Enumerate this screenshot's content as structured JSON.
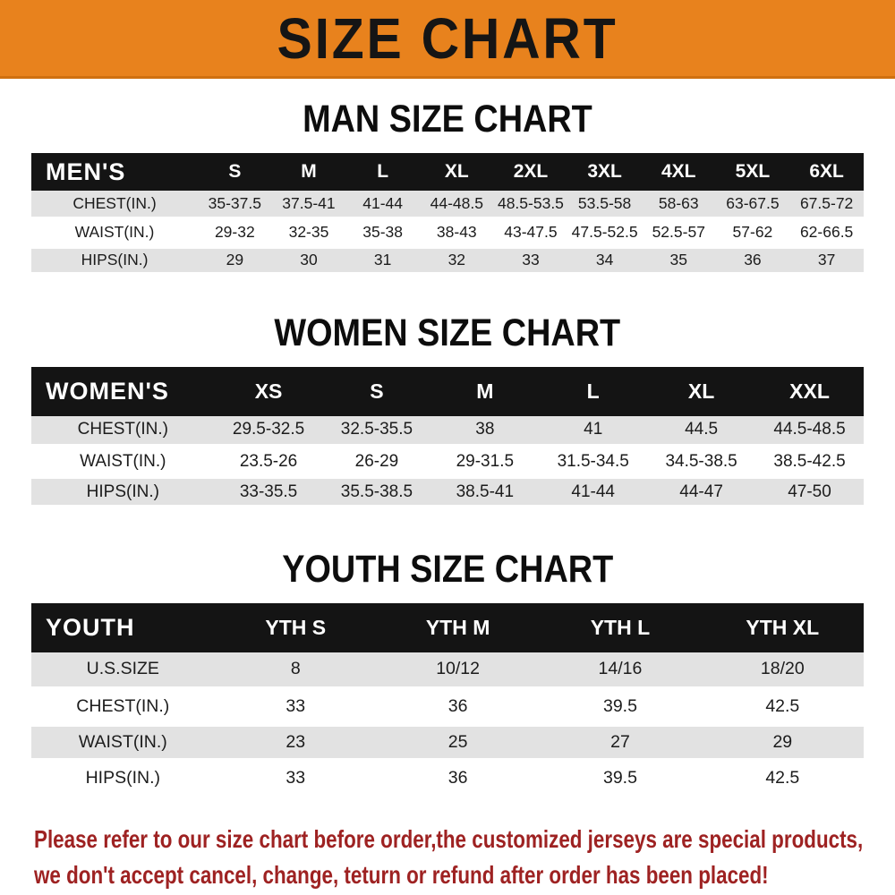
{
  "banner": {
    "title": "SIZE CHART"
  },
  "colors": {
    "banner_orange": "#E8821D",
    "table_header_black": "#141414",
    "row_stripe_gray": "#E2E2E2",
    "footnote_red": "#9E2222"
  },
  "sections": [
    {
      "heading": "MAN SIZE CHART",
      "table": {
        "header": [
          "MEN'S",
          "S",
          "M",
          "L",
          "XL",
          "2XL",
          "3XL",
          "4XL",
          "5XL",
          "6XL"
        ],
        "rows": [
          [
            "CHEST(IN.)",
            "35-37.5",
            "37.5-41",
            "41-44",
            "44-48.5",
            "48.5-53.5",
            "53.5-58",
            "58-63",
            "63-67.5",
            "67.5-72"
          ],
          [
            "WAIST(IN.)",
            "29-32",
            "32-35",
            "35-38",
            "38-43",
            "43-47.5",
            "47.5-52.5",
            "52.5-57",
            "57-62",
            "62-66.5"
          ],
          [
            "HIPS(IN.)",
            "29",
            "30",
            "31",
            "32",
            "33",
            "34",
            "35",
            "36",
            "37"
          ]
        ]
      }
    },
    {
      "heading": "WOMEN SIZE CHART",
      "table": {
        "header": [
          "WOMEN'S",
          "XS",
          "S",
          "M",
          "L",
          "XL",
          "XXL"
        ],
        "rows": [
          [
            "CHEST(IN.)",
            "29.5-32.5",
            "32.5-35.5",
            "38",
            "41",
            "44.5",
            "44.5-48.5"
          ],
          [
            "WAIST(IN.)",
            "23.5-26",
            "26-29",
            "29-31.5",
            "31.5-34.5",
            "34.5-38.5",
            "38.5-42.5"
          ],
          [
            "HIPS(IN.)",
            "33-35.5",
            "35.5-38.5",
            "38.5-41",
            "41-44",
            "44-47",
            "47-50"
          ]
        ]
      }
    },
    {
      "heading": "YOUTH SIZE CHART",
      "table": {
        "header": [
          "YOUTH",
          "YTH S",
          "YTH M",
          "YTH L",
          "YTH XL"
        ],
        "rows": [
          [
            "U.S.SIZE",
            "8",
            "10/12",
            "14/16",
            "18/20"
          ],
          [
            "CHEST(IN.)",
            "33",
            "36",
            "39.5",
            "42.5"
          ],
          [
            "WAIST(IN.)",
            "23",
            "25",
            "27",
            "29"
          ],
          [
            "HIPS(IN.)",
            "33",
            "36",
            "39.5",
            "42.5"
          ]
        ]
      }
    }
  ],
  "footnote": {
    "line1": "Please refer to our size chart before order,the customized jerseys are special products,",
    "line2": "we don't accept cancel, change, teturn or refund after order has been placed!"
  }
}
